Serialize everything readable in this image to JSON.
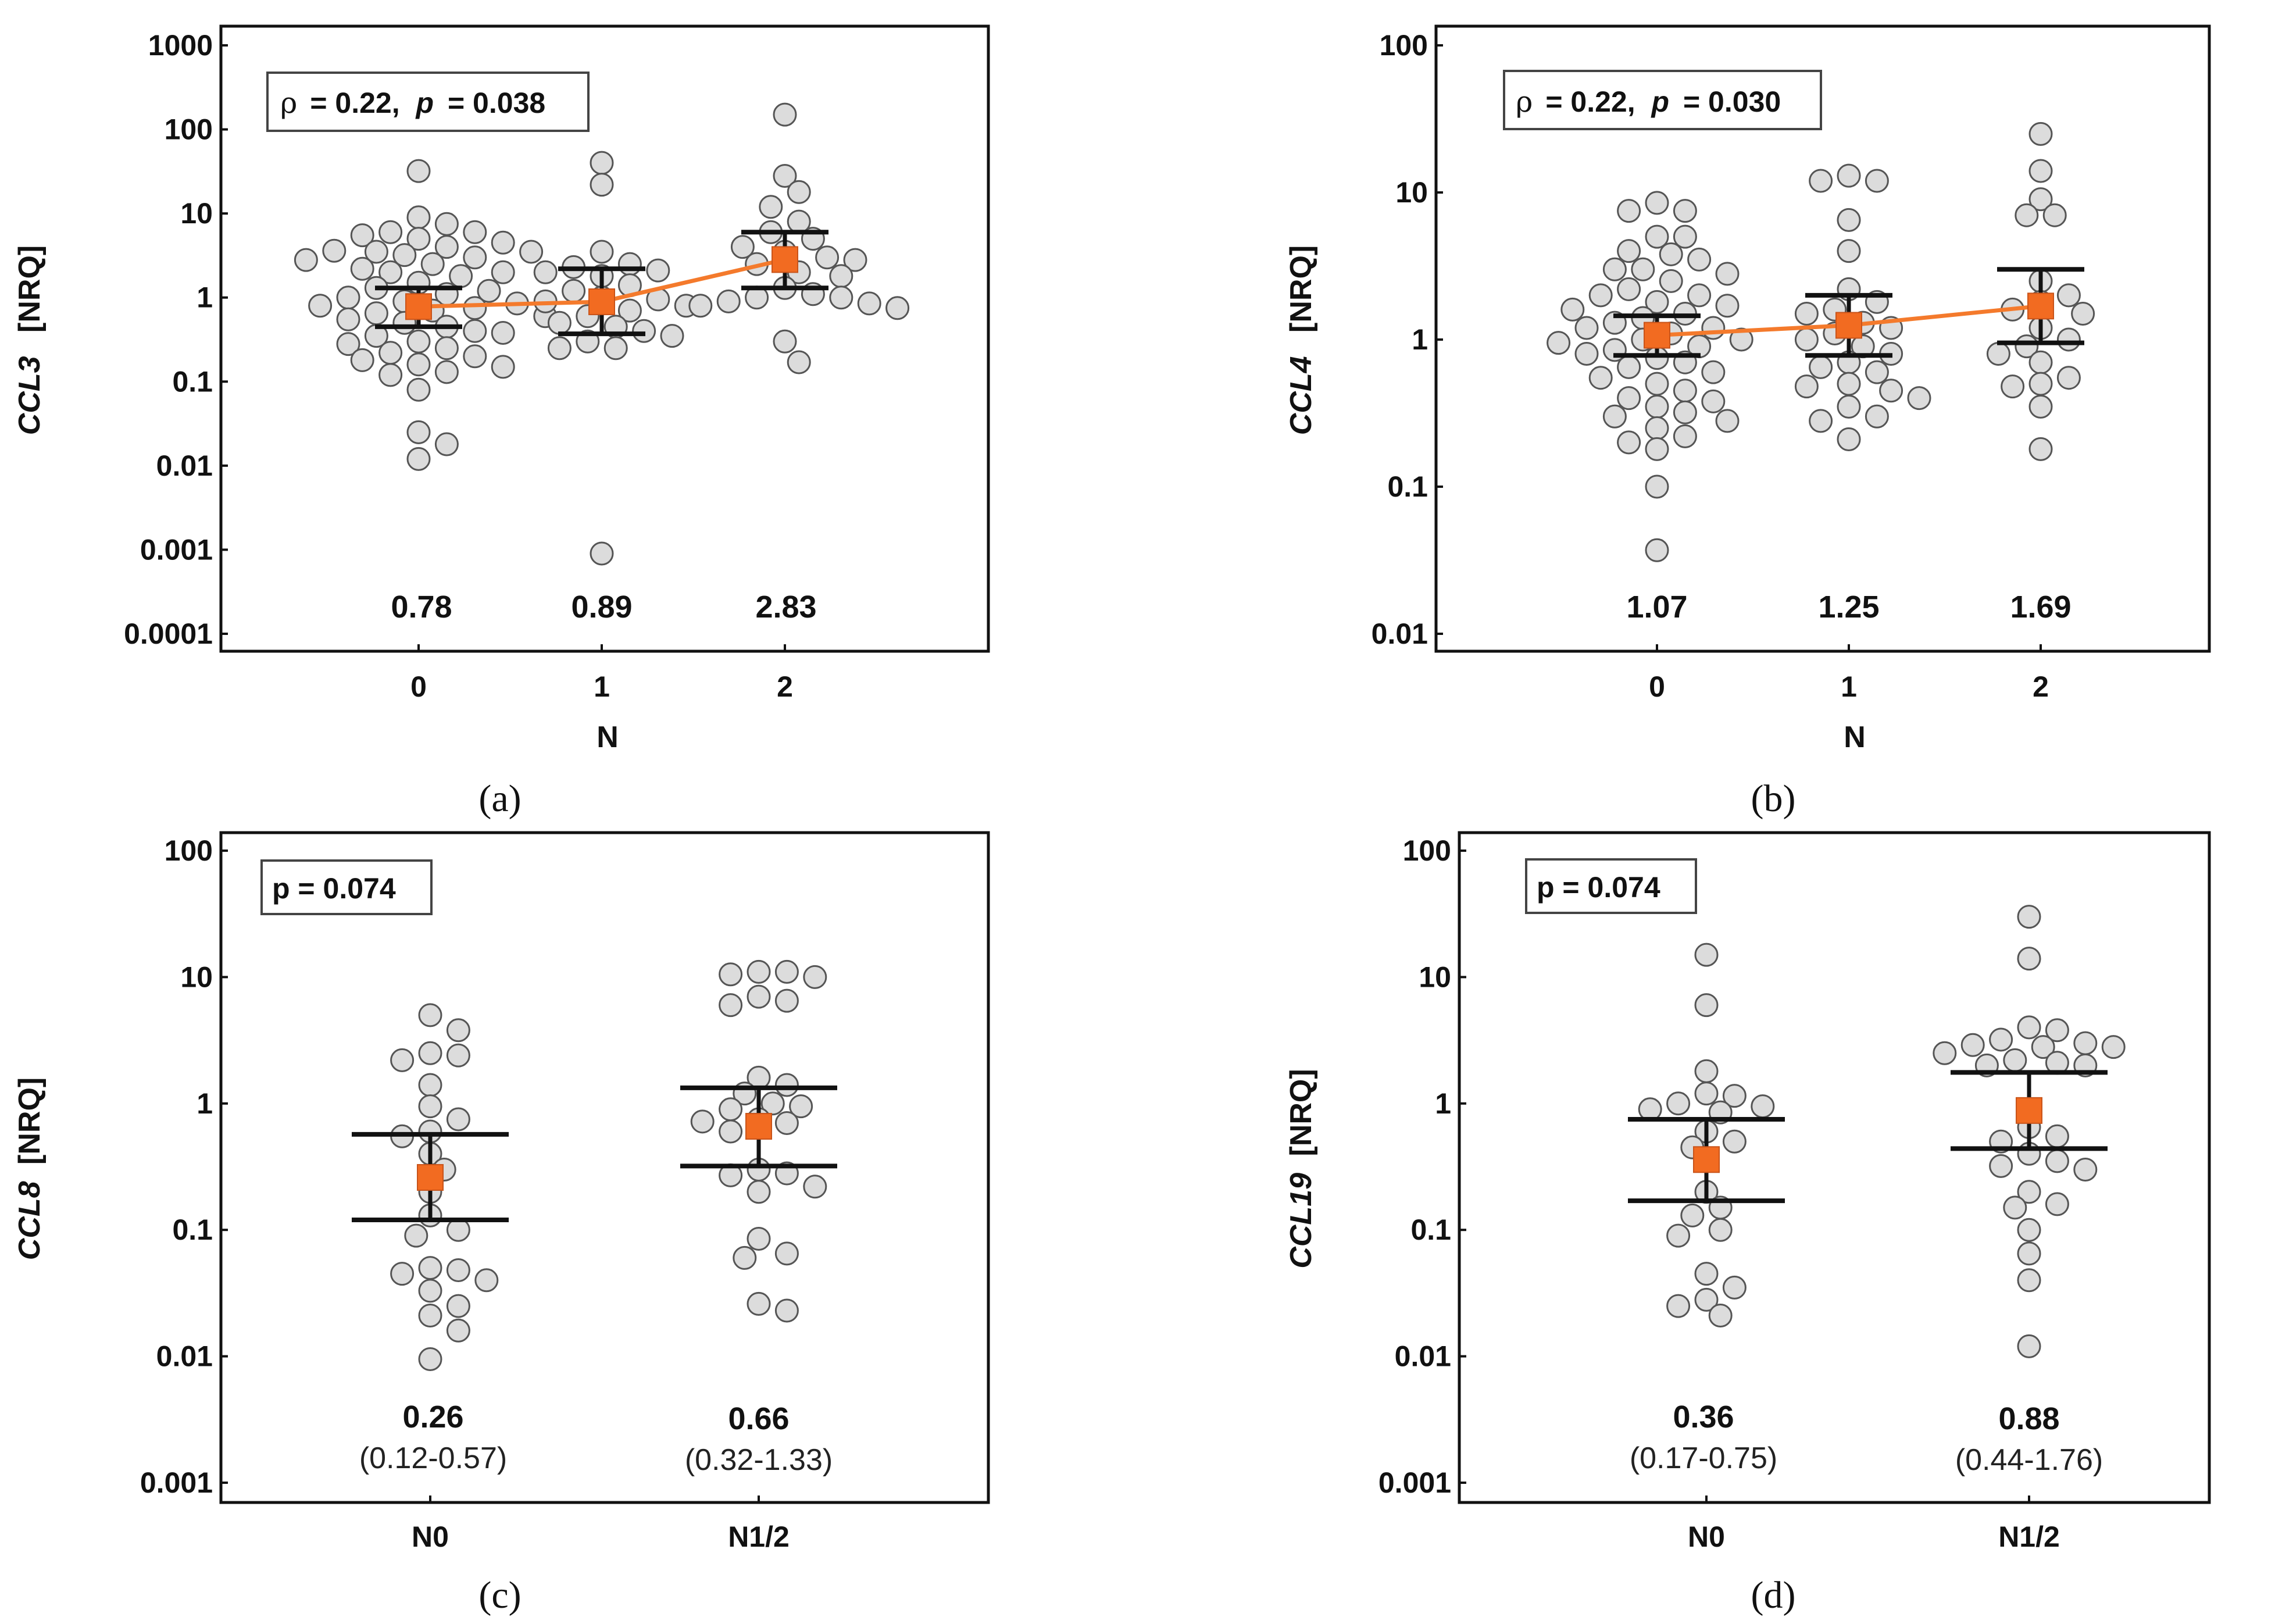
{
  "chart_data": [
    {
      "panel": "(a)",
      "type": "scatter",
      "ylabel_gene": "CCL3",
      "ylabel_unit": "[NRQ]",
      "xlabel": "N",
      "yscale": "log",
      "ylim": [
        0.0001,
        1000
      ],
      "yticks": [
        "1000",
        "100",
        "10",
        "1",
        "0.1",
        "0.01",
        "0.001",
        "0.0001"
      ],
      "stats": {
        "rho_label": "ρ",
        "rho_value": "= 0.22,",
        "p_label": "p",
        "p_value": "= 0.038"
      },
      "groups": [
        {
          "category": "0",
          "median": 0.78,
          "median_label": "0.78",
          "q1": 0.45,
          "q3": 1.3,
          "points": [
            32,
            9,
            7.5,
            6,
            6,
            5.5,
            5,
            4.5,
            4,
            3.6,
            3.5,
            3.5,
            3.2,
            3,
            2.8,
            2.5,
            2.2,
            2,
            2,
            1.8,
            1.5,
            1.3,
            1.2,
            1.1,
            1,
            0.9,
            0.85,
            0.8,
            0.75,
            0.7,
            0.65,
            0.6,
            0.55,
            0.5,
            0.45,
            0.4,
            0.38,
            0.35,
            0.3,
            0.28,
            0.25,
            0.22,
            0.2,
            0.18,
            0.16,
            0.15,
            0.13,
            0.12,
            0.08,
            0.025,
            0.018,
            0.012
          ]
        },
        {
          "category": "1",
          "median": 0.89,
          "median_label": "0.89",
          "q1": 0.37,
          "q3": 2.2,
          "points": [
            40,
            22,
            3.5,
            2.5,
            2.3,
            2.1,
            2,
            1.8,
            1.4,
            1.2,
            1,
            0.95,
            0.9,
            0.8,
            0.7,
            0.6,
            0.5,
            0.45,
            0.4,
            0.35,
            0.3,
            0.25,
            0.25,
            0.0009
          ]
        },
        {
          "category": "2",
          "median": 2.83,
          "median_label": "2.83",
          "q1": 1.3,
          "q3": 6,
          "points": [
            150,
            28,
            18,
            12,
            8,
            6,
            5,
            4,
            3.5,
            3,
            2.8,
            2.5,
            2,
            1.8,
            1.3,
            1.1,
            1,
            1,
            0.9,
            0.85,
            0.8,
            0.75,
            0.3,
            0.17
          ]
        }
      ]
    },
    {
      "panel": "(b)",
      "type": "scatter",
      "ylabel_gene": "CCL4",
      "ylabel_unit": "[NRQ]",
      "xlabel": "N",
      "yscale": "log",
      "ylim": [
        0.01,
        100
      ],
      "yticks": [
        "100",
        "10",
        "1",
        "0.1",
        "0.01"
      ],
      "stats": {
        "rho_label": "ρ",
        "rho_value": "= 0.22,",
        "p_label": "p",
        "p_value": "= 0.030"
      },
      "groups": [
        {
          "category": "0",
          "median": 1.07,
          "median_label": "1.07",
          "q1": 0.78,
          "q3": 1.45,
          "points": [
            8.5,
            7.5,
            7.5,
            5,
            5,
            4,
            3.8,
            3.5,
            3,
            3,
            2.8,
            2.5,
            2.2,
            2,
            2,
            1.8,
            1.7,
            1.6,
            1.5,
            1.4,
            1.3,
            1.2,
            1.2,
            1.1,
            1,
            1,
            0.95,
            0.9,
            0.85,
            0.8,
            0.75,
            0.7,
            0.65,
            0.6,
            0.55,
            0.5,
            0.45,
            0.4,
            0.38,
            0.35,
            0.32,
            0.3,
            0.28,
            0.25,
            0.22,
            0.2,
            0.18,
            0.1,
            0.037
          ]
        },
        {
          "category": "1",
          "median": 1.25,
          "median_label": "1.25",
          "q1": 0.78,
          "q3": 2,
          "points": [
            13,
            12,
            12,
            6.5,
            4,
            2.2,
            1.8,
            1.6,
            1.5,
            1.3,
            1.2,
            1.1,
            1,
            0.9,
            0.8,
            0.7,
            0.65,
            0.6,
            0.5,
            0.48,
            0.45,
            0.4,
            0.35,
            0.3,
            0.28,
            0.21
          ]
        },
        {
          "category": "2",
          "median": 1.69,
          "median_label": "1.69",
          "q1": 0.95,
          "q3": 3,
          "points": [
            25,
            14,
            9,
            7,
            7,
            2.5,
            2,
            1.8,
            1.6,
            1.5,
            1.2,
            1,
            0.9,
            0.8,
            0.7,
            0.55,
            0.5,
            0.48,
            0.35,
            0.18
          ]
        }
      ]
    },
    {
      "panel": "(c)",
      "type": "scatter",
      "ylabel_gene": "CCL8",
      "ylabel_unit": "[NRQ]",
      "xlabel": "",
      "yscale": "log",
      "ylim": [
        0.001,
        100
      ],
      "yticks": [
        "100",
        "10",
        "1",
        "0.1",
        "0.01",
        "0.001"
      ],
      "stats": {
        "p_text": "p = 0.074"
      },
      "groups": [
        {
          "category": "N0",
          "median": 0.26,
          "median_label": "0.26",
          "iqr_label": "(0.12-0.57)",
          "q1": 0.12,
          "q3": 0.57,
          "points": [
            5,
            3.8,
            2.5,
            2.4,
            2.2,
            1.4,
            0.95,
            0.75,
            0.6,
            0.55,
            0.4,
            0.3,
            0.2,
            0.13,
            0.1,
            0.09,
            0.05,
            0.048,
            0.045,
            0.04,
            0.033,
            0.025,
            0.016,
            0.021,
            0.0095
          ]
        },
        {
          "category": "N1/2",
          "median": 0.66,
          "median_label": "0.66",
          "iqr_label": "(0.32-1.33)",
          "q1": 0.32,
          "q3": 1.33,
          "points": [
            11,
            11,
            10.5,
            10,
            7,
            6.5,
            6,
            1.6,
            1.4,
            1.2,
            1,
            0.95,
            0.9,
            0.75,
            0.72,
            0.7,
            0.6,
            0.3,
            0.28,
            0.27,
            0.22,
            0.2,
            0.085,
            0.065,
            0.06,
            0.026,
            0.023
          ]
        }
      ]
    },
    {
      "panel": "(d)",
      "type": "scatter",
      "ylabel_gene": "CCL19",
      "ylabel_unit": "[NRQ]",
      "xlabel": "",
      "yscale": "log",
      "ylim": [
        0.001,
        100
      ],
      "yticks": [
        "100",
        "10",
        "1",
        "0.1",
        "0.01",
        "0.001"
      ],
      "stats": {
        "p_text": "p = 0.074"
      },
      "groups": [
        {
          "category": "N0",
          "median": 0.36,
          "median_label": "0.36",
          "iqr_label": "(0.17-0.75)",
          "q1": 0.17,
          "q3": 0.75,
          "points": [
            15,
            6,
            1.8,
            1.2,
            1.15,
            1,
            0.95,
            0.9,
            0.85,
            0.6,
            0.5,
            0.45,
            0.2,
            0.15,
            0.13,
            0.1,
            0.09,
            0.045,
            0.035,
            0.028,
            0.025,
            0.021
          ]
        },
        {
          "category": "N1/2",
          "median": 0.88,
          "median_label": "0.88",
          "iqr_label": "(0.44-1.76)",
          "q1": 0.44,
          "q3": 1.76,
          "points": [
            30,
            14,
            4,
            3.8,
            3.2,
            3,
            2.9,
            2.8,
            2.8,
            2.5,
            2.2,
            2.1,
            2,
            2,
            0.65,
            0.55,
            0.5,
            0.4,
            0.35,
            0.32,
            0.3,
            0.2,
            0.16,
            0.15,
            0.1,
            0.065,
            0.04,
            0.012
          ]
        }
      ]
    }
  ]
}
